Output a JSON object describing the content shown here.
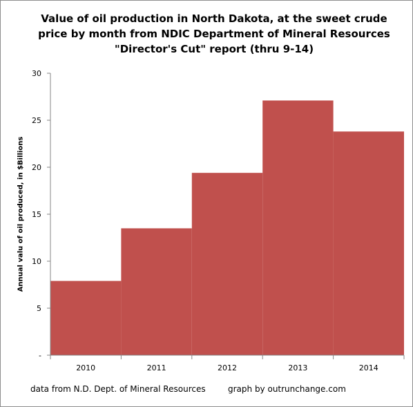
{
  "chart_data": {
    "type": "bar",
    "title_lines": [
      "Value of oil production in North Dakota, at the sweet crude",
      "price by month from NDIC Department of Mineral Resources",
      "\"Director's Cut\" report  (thru 9-14)"
    ],
    "xlabel": "",
    "ylabel": "Annual valu of oil produced, in $Billions",
    "categories": [
      "2010",
      "2011",
      "2012",
      "2013",
      "2014"
    ],
    "values": [
      7.9,
      13.5,
      19.4,
      27.1,
      23.8
    ],
    "ylim": [
      0,
      30
    ],
    "y_ticks": [
      "-",
      "5",
      "10",
      "15",
      "20",
      "25",
      "30"
    ],
    "bar_color": "#c0504d",
    "grid": false,
    "legend": "none"
  },
  "footer": {
    "source": "data from N.D. Dept. of Mineral Resources",
    "credit": "graph by outrunchange.com"
  }
}
